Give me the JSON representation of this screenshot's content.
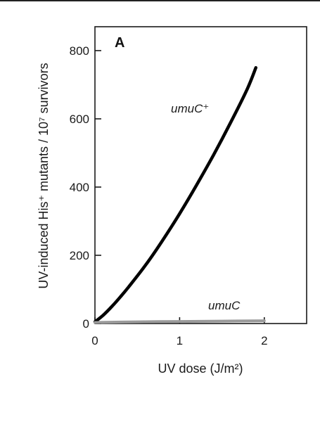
{
  "chart_data": {
    "type": "line",
    "panel_label": "A",
    "xlabel": "UV dose (J/m²)",
    "ylabel": "UV-induced His⁺ mutants / 10⁷ survivors",
    "xlim": [
      0,
      2.5
    ],
    "ylim": [
      0,
      870
    ],
    "x_ticks": [
      0,
      1,
      2
    ],
    "y_ticks": [
      0,
      200,
      400,
      600,
      800
    ],
    "grid": false,
    "series": [
      {
        "name": "umuC⁺",
        "color": "#000000",
        "x": [
          0,
          0.1,
          0.2,
          0.3,
          0.4,
          0.6,
          0.8,
          1.0,
          1.2,
          1.4,
          1.6,
          1.8,
          1.9
        ],
        "y": [
          5,
          25,
          50,
          78,
          108,
          172,
          244,
          322,
          406,
          494,
          588,
          688,
          750
        ]
      },
      {
        "name": "umuC",
        "color": "#9a9a9a",
        "x": [
          0,
          0.5,
          1.0,
          1.5,
          2.0
        ],
        "y": [
          3,
          5,
          6,
          7,
          8
        ]
      }
    ]
  }
}
